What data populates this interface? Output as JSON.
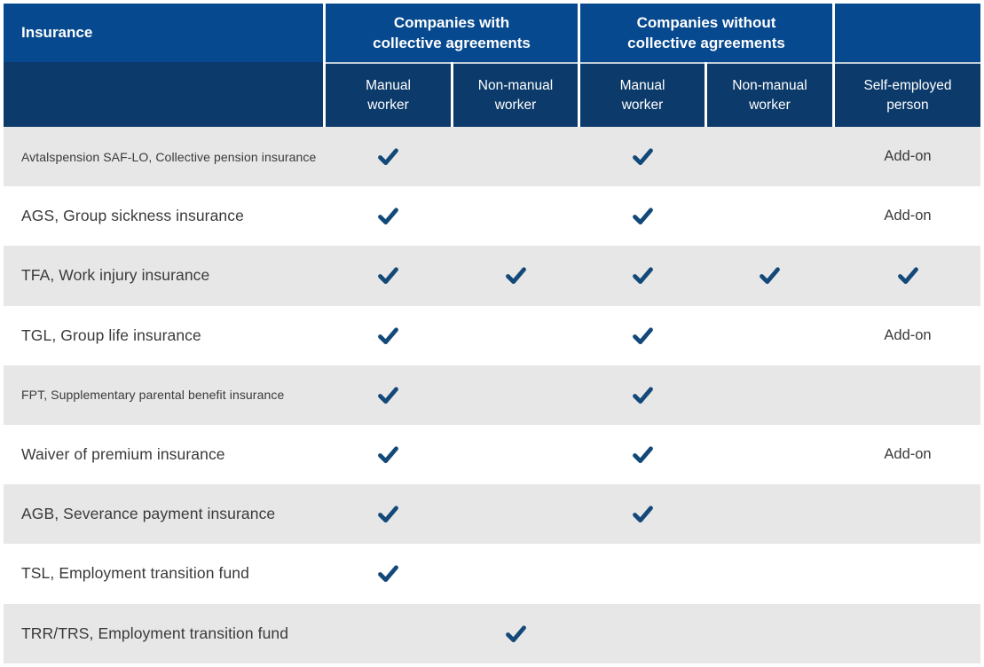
{
  "header": {
    "insurance_label": "Insurance",
    "groups": [
      {
        "lines": [
          "Companies with",
          "collective agreements"
        ]
      },
      {
        "lines": [
          "Companies without",
          "collective agreements"
        ]
      }
    ],
    "columns": [
      {
        "lines": [
          "Manual",
          "worker"
        ]
      },
      {
        "lines": [
          "Non-manual",
          "worker"
        ]
      },
      {
        "lines": [
          "Manual",
          "worker"
        ]
      },
      {
        "lines": [
          "Non-manual",
          "worker"
        ]
      },
      {
        "lines": [
          "Self-employed",
          "person"
        ]
      }
    ]
  },
  "rows": [
    {
      "insurance": "Avtalspension SAF-LO, Collective pension insurance",
      "small_text": true,
      "cells": [
        "check",
        "",
        "check",
        "",
        "Add-on"
      ]
    },
    {
      "insurance": "AGS, Group sickness insurance",
      "small_text": false,
      "cells": [
        "check",
        "",
        "check",
        "",
        "Add-on"
      ]
    },
    {
      "insurance": "TFA, Work injury insurance",
      "small_text": false,
      "cells": [
        "check",
        "check",
        "check",
        "check",
        "check"
      ]
    },
    {
      "insurance": "TGL, Group life insurance",
      "small_text": false,
      "cells": [
        "check",
        "",
        "check",
        "",
        "Add-on"
      ]
    },
    {
      "insurance": "FPT, Supplementary parental benefit insurance",
      "small_text": true,
      "cells": [
        "check",
        "",
        "check",
        "",
        ""
      ]
    },
    {
      "insurance": "Waiver of premium insurance",
      "small_text": false,
      "cells": [
        "check",
        "",
        "check",
        "",
        "Add-on"
      ]
    },
    {
      "insurance": "AGB, Severance payment insurance",
      "small_text": false,
      "cells": [
        "check",
        "",
        "check",
        "",
        ""
      ]
    },
    {
      "insurance": "TSL, Employment transition fund",
      "small_text": false,
      "cells": [
        "check",
        "",
        "",
        "",
        ""
      ]
    },
    {
      "insurance": "TRR/TRS, Employment transition fund",
      "small_text": false,
      "cells": [
        "",
        "check",
        "",
        "",
        ""
      ]
    }
  ],
  "colors": {
    "header_top_bg": "#07498E",
    "header_bottom_bg": "#0C3A6A",
    "header_text": "#FFFFFF",
    "row_alt_bg": "#E7E7E7",
    "check": "#134979",
    "label_text": "#3A3A3A"
  }
}
